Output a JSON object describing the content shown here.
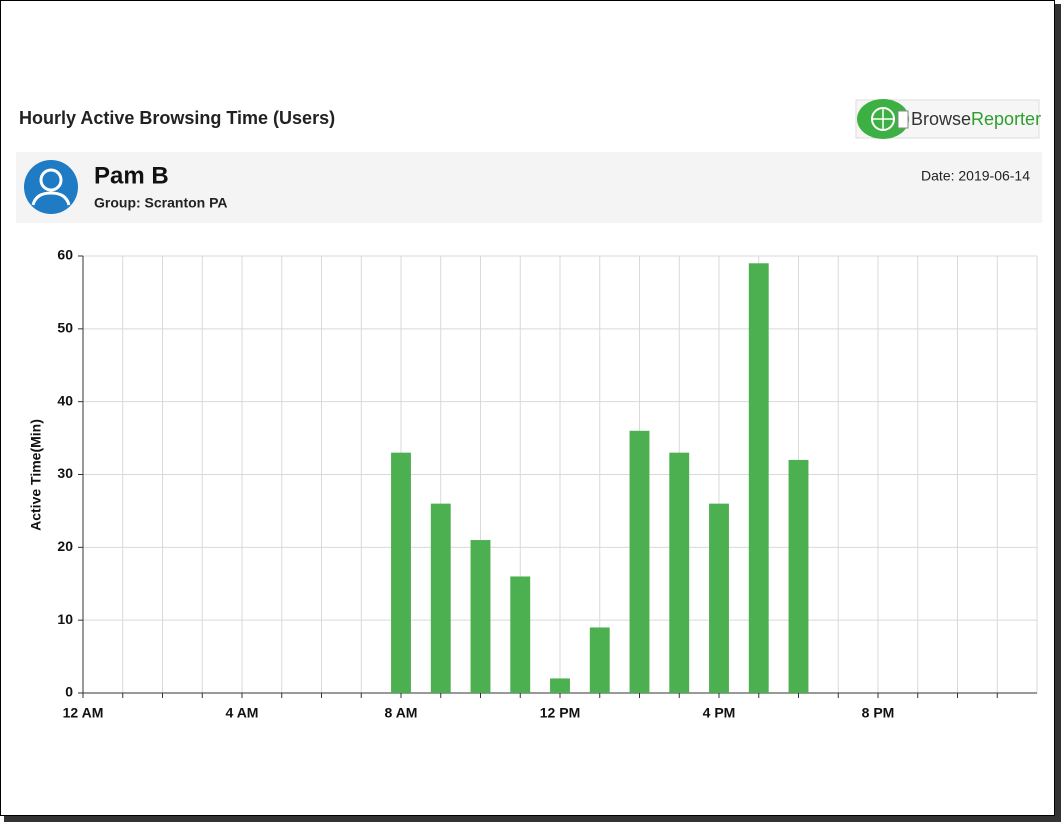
{
  "header": {
    "report_title": "Hourly Active Browsing Time (Users)",
    "logo": {
      "part1": "Browse",
      "part2": "Reporter"
    }
  },
  "user": {
    "name": "Pam B",
    "group": "Group: Scranton PA",
    "date": "Date: 2019-06-14"
  },
  "chart_data": {
    "type": "bar",
    "y_label": "Active Time(Min)",
    "categories": [
      "12 AM",
      null,
      null,
      null,
      "4 AM",
      null,
      null,
      null,
      "8 AM",
      null,
      null,
      null,
      "12 PM",
      null,
      null,
      null,
      "4 PM",
      null,
      null,
      null,
      "8 PM",
      null,
      null,
      null
    ],
    "values": [
      0,
      0,
      0,
      0,
      0,
      0,
      0,
      0,
      33,
      26,
      21,
      16,
      2,
      9,
      36,
      33,
      26,
      59,
      32,
      0,
      0,
      0,
      0,
      0
    ],
    "color": "#4caf50",
    "ylim": [
      0,
      60
    ],
    "yticks": [
      0,
      10,
      20,
      30,
      40,
      50,
      60
    ],
    "grid": true
  }
}
